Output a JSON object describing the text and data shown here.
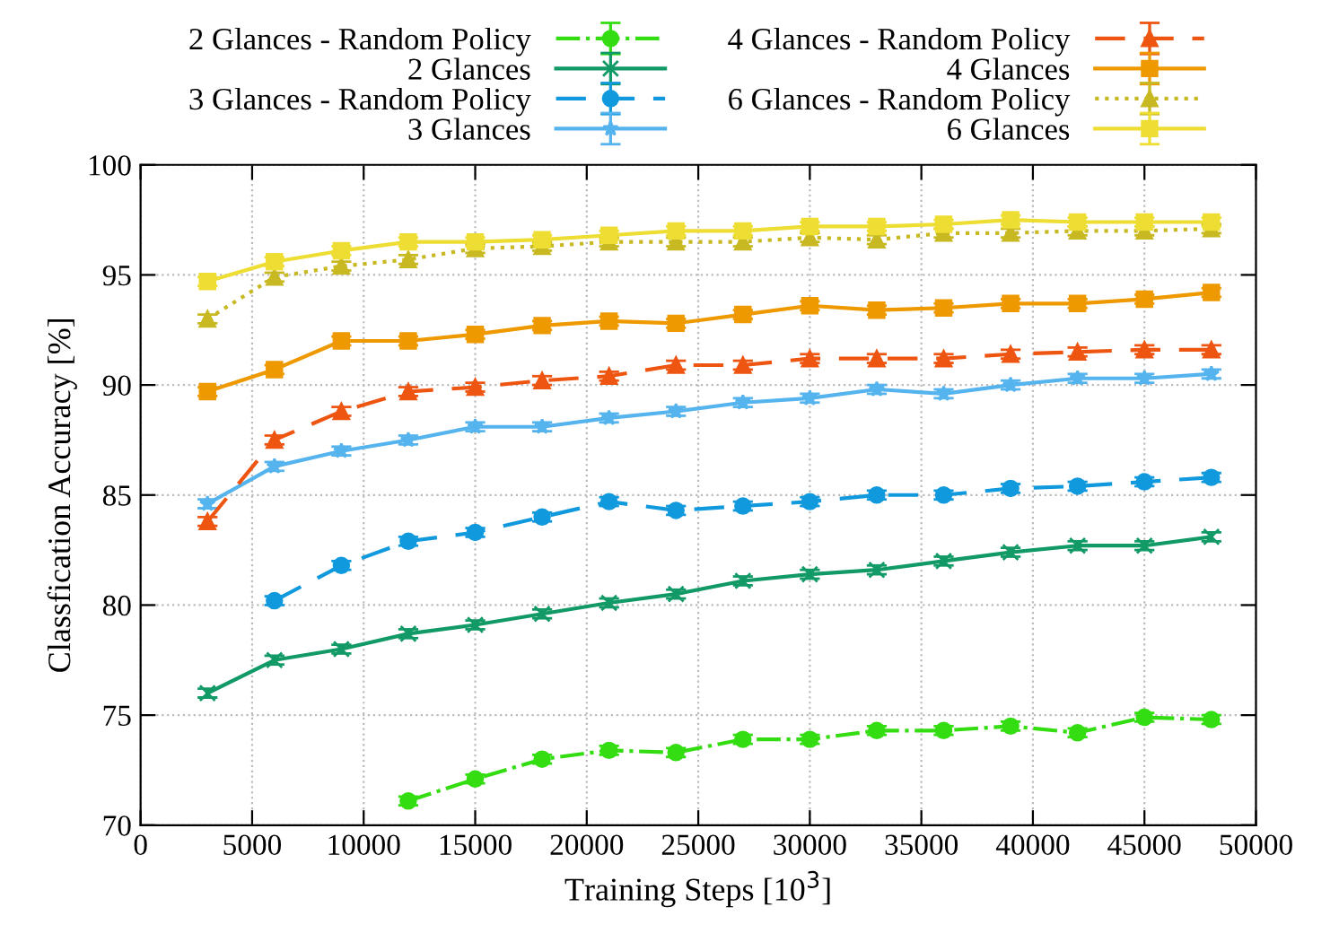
{
  "chart_data": {
    "type": "line",
    "xlabel": "Training Steps [10$^{3}$]",
    "ylabel": "Classfication Accuracy [%]",
    "x": [
      3000,
      6000,
      9000,
      12000,
      15000,
      18000,
      21000,
      24000,
      27000,
      30000,
      33000,
      36000,
      39000,
      42000,
      45000,
      48000
    ],
    "xlim": [
      0,
      50000
    ],
    "xticks": [
      0,
      5000,
      10000,
      15000,
      20000,
      25000,
      30000,
      35000,
      40000,
      45000,
      50000
    ],
    "ylim": [
      70,
      100
    ],
    "yticks": [
      70,
      75,
      80,
      85,
      90,
      95,
      100
    ],
    "grid": true,
    "legend": "top",
    "series": [
      {
        "name": "2 Glances - Random Policy",
        "color": "#33dd11",
        "marker": "circle",
        "line_style": "dashdot",
        "values": [
          null,
          null,
          null,
          71.1,
          72.1,
          73.0,
          73.4,
          73.3,
          73.9,
          73.9,
          74.3,
          74.3,
          74.5,
          74.2,
          74.9,
          74.8
        ],
        "errors": [
          null,
          null,
          null,
          0.2,
          0.2,
          0.2,
          0.2,
          0.2,
          0.2,
          0.2,
          0.2,
          0.2,
          0.2,
          0.2,
          0.2,
          0.2
        ]
      },
      {
        "name": "2 Glances",
        "color": "#119966",
        "marker": "cross",
        "line_style": "solid",
        "values": [
          76.0,
          77.5,
          78.0,
          78.7,
          79.1,
          79.6,
          80.1,
          80.5,
          81.1,
          81.4,
          81.6,
          82.0,
          82.4,
          82.7,
          82.7,
          83.1
        ],
        "errors": [
          0.2,
          0.2,
          0.2,
          0.2,
          0.2,
          0.2,
          0.2,
          0.2,
          0.2,
          0.2,
          0.2,
          0.2,
          0.2,
          0.2,
          0.2,
          0.2
        ]
      },
      {
        "name": "3 Glances - Random Policy",
        "color": "#1199dd",
        "marker": "circle",
        "line_style": "dashed",
        "values": [
          null,
          80.2,
          81.8,
          82.9,
          83.3,
          84.0,
          84.7,
          84.3,
          84.5,
          84.7,
          85.0,
          85.0,
          85.3,
          85.4,
          85.6,
          85.8
        ],
        "errors": [
          null,
          0.2,
          0.2,
          0.2,
          0.2,
          0.2,
          0.2,
          0.2,
          0.2,
          0.2,
          0.2,
          0.2,
          0.2,
          0.2,
          0.2,
          0.2
        ]
      },
      {
        "name": "3 Glances",
        "color": "#55b4ee",
        "marker": "star",
        "line_style": "solid",
        "values": [
          84.6,
          86.3,
          87.0,
          87.5,
          88.1,
          88.1,
          88.5,
          88.8,
          89.2,
          89.4,
          89.8,
          89.6,
          90.0,
          90.3,
          90.3,
          90.5
        ],
        "errors": [
          0.2,
          0.2,
          0.2,
          0.2,
          0.2,
          0.2,
          0.2,
          0.2,
          0.2,
          0.2,
          0.2,
          0.2,
          0.2,
          0.2,
          0.2,
          0.2
        ]
      },
      {
        "name": "4 Glances - Random Policy",
        "color": "#ee5511",
        "marker": "triangle",
        "line_style": "dashed",
        "values": [
          83.8,
          87.5,
          88.8,
          89.7,
          89.9,
          90.2,
          90.4,
          90.9,
          90.9,
          91.2,
          91.2,
          91.2,
          91.4,
          91.5,
          91.6,
          91.6
        ],
        "errors": [
          0.2,
          0.2,
          0.2,
          0.2,
          0.2,
          0.2,
          0.2,
          0.2,
          0.2,
          0.2,
          0.2,
          0.2,
          0.2,
          0.2,
          0.2,
          0.2
        ]
      },
      {
        "name": "4 Glances",
        "color": "#ee9900",
        "marker": "square",
        "line_style": "solid",
        "values": [
          89.7,
          90.7,
          92.0,
          92.0,
          92.3,
          92.7,
          92.9,
          92.8,
          93.2,
          93.6,
          93.4,
          93.5,
          93.7,
          93.7,
          93.9,
          94.2
        ],
        "errors": [
          0.2,
          0.2,
          0.2,
          0.2,
          0.2,
          0.2,
          0.2,
          0.2,
          0.2,
          0.2,
          0.2,
          0.2,
          0.2,
          0.2,
          0.2,
          0.2
        ]
      },
      {
        "name": "6 Glances - Random Policy",
        "color": "#c8b822",
        "marker": "triangle",
        "line_style": "dotted",
        "values": [
          93.0,
          94.9,
          95.4,
          95.7,
          96.2,
          96.3,
          96.5,
          96.5,
          96.5,
          96.7,
          96.6,
          96.9,
          96.9,
          97.0,
          97.0,
          97.1
        ],
        "errors": [
          0.2,
          0.2,
          0.2,
          0.2,
          0.2,
          0.2,
          0.2,
          0.2,
          0.2,
          0.2,
          0.2,
          0.2,
          0.2,
          0.2,
          0.2,
          0.2
        ]
      },
      {
        "name": "6 Glances",
        "color": "#eedd33",
        "marker": "square",
        "line_style": "solid",
        "values": [
          94.7,
          95.6,
          96.1,
          96.5,
          96.5,
          96.6,
          96.8,
          97.0,
          97.0,
          97.2,
          97.2,
          97.3,
          97.5,
          97.4,
          97.4,
          97.4
        ],
        "errors": [
          0.2,
          0.2,
          0.2,
          0.2,
          0.2,
          0.2,
          0.2,
          0.2,
          0.2,
          0.2,
          0.2,
          0.2,
          0.2,
          0.2,
          0.2,
          0.2
        ]
      }
    ]
  }
}
